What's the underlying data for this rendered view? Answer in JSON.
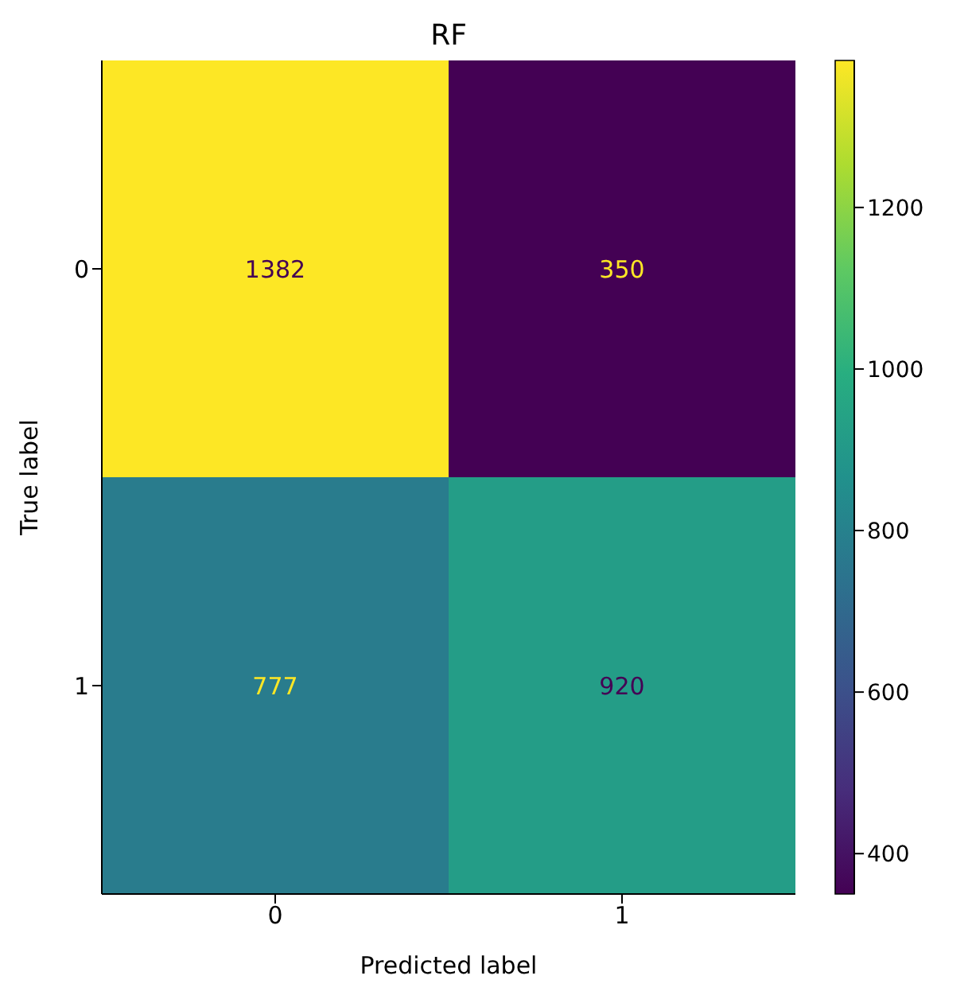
{
  "chart_data": {
    "type": "heatmap",
    "title": "RF",
    "xlabel": "Predicted label",
    "ylabel": "True label",
    "categories": [
      "0",
      "1"
    ],
    "y_categories": [
      "0",
      "1"
    ],
    "cells": [
      [
        1382,
        350
      ],
      [
        777,
        920
      ]
    ],
    "data_labels": true,
    "clim": [
      350,
      1382
    ],
    "cticks": [
      400,
      600,
      800,
      1000,
      1200
    ]
  }
}
